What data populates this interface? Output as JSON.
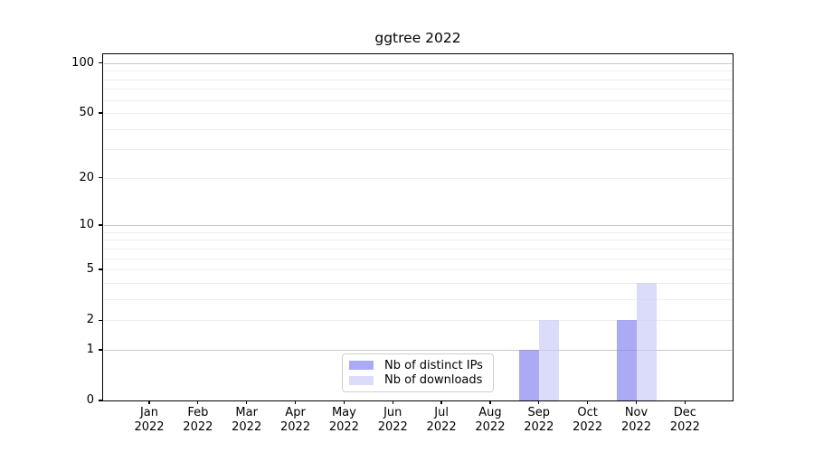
{
  "chart_data": {
    "type": "bar",
    "title": "ggtree 2022",
    "categories": [
      "Jan",
      "Feb",
      "Mar",
      "Apr",
      "May",
      "Jun",
      "Jul",
      "Aug",
      "Sep",
      "Oct",
      "Nov",
      "Dec"
    ],
    "category_year": "2022",
    "series": [
      {
        "name": "Nb of distinct IPs",
        "color": "rgba(136,136,238,0.7)",
        "values": [
          0,
          0,
          0,
          0,
          0,
          0,
          0,
          0,
          1,
          0,
          2,
          0
        ]
      },
      {
        "name": "Nb of downloads",
        "color": "rgba(204,204,248,0.7)",
        "values": [
          0,
          0,
          0,
          0,
          0,
          0,
          0,
          0,
          2,
          0,
          4,
          0
        ]
      }
    ],
    "y_ticks": [
      0,
      1,
      2,
      5,
      10,
      20,
      50,
      100
    ],
    "ylim": [
      0,
      113
    ],
    "yscale": "log10(1+y)",
    "grid": {
      "major": [
        1,
        10,
        100
      ],
      "minor": [
        2,
        3,
        4,
        5,
        6,
        7,
        8,
        9,
        20,
        30,
        40,
        50,
        60,
        70,
        80,
        90
      ]
    },
    "legend_position": "bottom-center",
    "colors": {
      "major_grid": "#c6c6c6",
      "minor_grid": "#ededed",
      "axis": "#000000",
      "background": "#ffffff"
    }
  }
}
